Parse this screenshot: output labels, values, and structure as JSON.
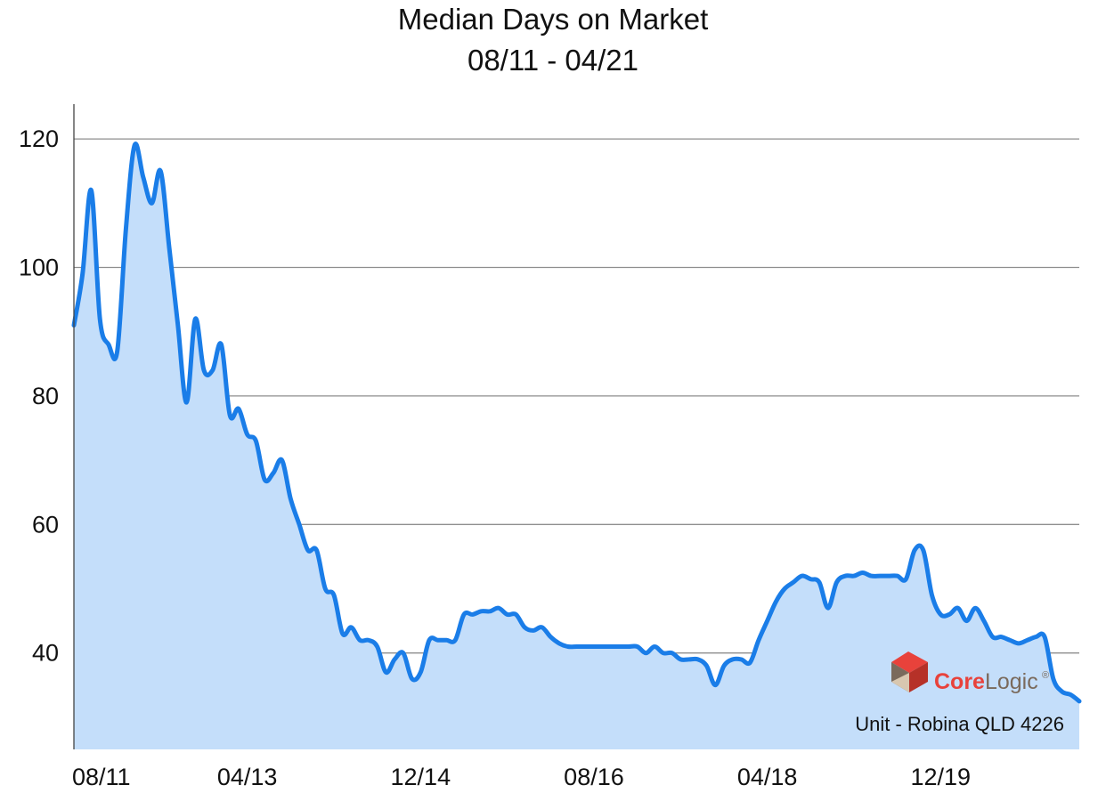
{
  "chart_data": {
    "type": "area",
    "title": "Median Days on Market",
    "subtitle": "08/11 - 04/21",
    "xlabel": "",
    "ylabel": "",
    "ylim": [
      25,
      125
    ],
    "yticks": [
      40,
      60,
      80,
      100,
      120
    ],
    "xtick_labels": [
      "08/11",
      "04/13",
      "12/14",
      "08/16",
      "04/18",
      "12/19"
    ],
    "x_range": [
      "2011-08",
      "2021-04"
    ],
    "grid": true,
    "line_color": "#1a7de8",
    "fill_color": "#c4defa",
    "series": [
      {
        "values": [
          [
            "2011-08",
            91
          ],
          [
            "2011-09",
            99
          ],
          [
            "2011-10",
            112
          ],
          [
            "2011-11",
            92
          ],
          [
            "2011-12",
            88
          ],
          [
            "2012-01",
            87
          ],
          [
            "2012-02",
            106
          ],
          [
            "2012-03",
            119
          ],
          [
            "2012-04",
            114
          ],
          [
            "2012-05",
            110
          ],
          [
            "2012-06",
            115
          ],
          [
            "2012-07",
            103
          ],
          [
            "2012-08",
            91
          ],
          [
            "2012-09",
            79
          ],
          [
            "2012-10",
            92
          ],
          [
            "2012-11",
            84
          ],
          [
            "2012-12",
            84
          ],
          [
            "2013-01",
            88
          ],
          [
            "2013-02",
            77
          ],
          [
            "2013-03",
            78
          ],
          [
            "2013-04",
            74
          ],
          [
            "2013-05",
            73
          ],
          [
            "2013-06",
            67
          ],
          [
            "2013-07",
            68
          ],
          [
            "2013-08",
            70
          ],
          [
            "2013-09",
            64
          ],
          [
            "2013-10",
            60
          ],
          [
            "2013-11",
            56
          ],
          [
            "2013-12",
            56
          ],
          [
            "2014-01",
            50
          ],
          [
            "2014-02",
            49
          ],
          [
            "2014-03",
            43
          ],
          [
            "2014-04",
            44
          ],
          [
            "2014-05",
            42
          ],
          [
            "2014-06",
            42
          ],
          [
            "2014-07",
            41
          ],
          [
            "2014-08",
            37
          ],
          [
            "2014-09",
            39
          ],
          [
            "2014-10",
            40
          ],
          [
            "2014-11",
            36
          ],
          [
            "2014-12",
            37
          ],
          [
            "2015-01",
            42
          ],
          [
            "2015-02",
            42
          ],
          [
            "2015-03",
            42
          ],
          [
            "2015-04",
            42
          ],
          [
            "2015-05",
            46
          ],
          [
            "2015-06",
            46
          ],
          [
            "2015-07",
            46.5
          ],
          [
            "2015-08",
            46.5
          ],
          [
            "2015-09",
            47
          ],
          [
            "2015-10",
            46
          ],
          [
            "2015-11",
            46
          ],
          [
            "2015-12",
            44
          ],
          [
            "2016-01",
            43.5
          ],
          [
            "2016-02",
            44
          ],
          [
            "2016-03",
            42.5
          ],
          [
            "2016-04",
            41.5
          ],
          [
            "2016-05",
            41
          ],
          [
            "2016-06",
            41
          ],
          [
            "2016-07",
            41
          ],
          [
            "2016-08",
            41
          ],
          [
            "2016-09",
            41
          ],
          [
            "2016-10",
            41
          ],
          [
            "2016-11",
            41
          ],
          [
            "2016-12",
            41
          ],
          [
            "2017-01",
            41
          ],
          [
            "2017-02",
            40
          ],
          [
            "2017-03",
            41
          ],
          [
            "2017-04",
            40
          ],
          [
            "2017-05",
            40
          ],
          [
            "2017-06",
            39
          ],
          [
            "2017-07",
            39
          ],
          [
            "2017-08",
            39
          ],
          [
            "2017-09",
            38
          ],
          [
            "2017-10",
            35
          ],
          [
            "2017-11",
            38
          ],
          [
            "2017-12",
            39
          ],
          [
            "2018-01",
            39
          ],
          [
            "2018-02",
            38.5
          ],
          [
            "2018-03",
            42
          ],
          [
            "2018-04",
            45
          ],
          [
            "2018-05",
            48
          ],
          [
            "2018-06",
            50
          ],
          [
            "2018-07",
            51
          ],
          [
            "2018-08",
            52
          ],
          [
            "2018-09",
            51.5
          ],
          [
            "2018-10",
            51
          ],
          [
            "2018-11",
            47
          ],
          [
            "2018-12",
            51
          ],
          [
            "2019-01",
            52
          ],
          [
            "2019-02",
            52
          ],
          [
            "2019-03",
            52.5
          ],
          [
            "2019-04",
            52
          ],
          [
            "2019-05",
            52
          ],
          [
            "2019-06",
            52
          ],
          [
            "2019-07",
            52
          ],
          [
            "2019-08",
            51.5
          ],
          [
            "2019-09",
            56
          ],
          [
            "2019-10",
            56
          ],
          [
            "2019-11",
            49
          ],
          [
            "2019-12",
            46
          ],
          [
            "2020-01",
            46
          ],
          [
            "2020-02",
            47
          ],
          [
            "2020-03",
            45
          ],
          [
            "2020-04",
            47
          ],
          [
            "2020-05",
            45
          ],
          [
            "2020-06",
            42.5
          ],
          [
            "2020-07",
            42.5
          ],
          [
            "2020-08",
            42
          ],
          [
            "2020-09",
            41.5
          ],
          [
            "2020-10",
            42
          ],
          [
            "2020-11",
            42.5
          ],
          [
            "2020-12",
            42.5
          ],
          [
            "2021-01",
            36
          ],
          [
            "2021-02",
            34
          ],
          [
            "2021-03",
            33.5
          ],
          [
            "2021-04",
            32.5
          ]
        ]
      }
    ]
  },
  "watermark": {
    "brand": "CoreLogic",
    "registered_mark": "®",
    "location_caption": "Unit - Robina QLD 4226",
    "logo_colors": [
      "#e8423b",
      "#b63128",
      "#7a6a5c",
      "#d8c7b0"
    ]
  }
}
